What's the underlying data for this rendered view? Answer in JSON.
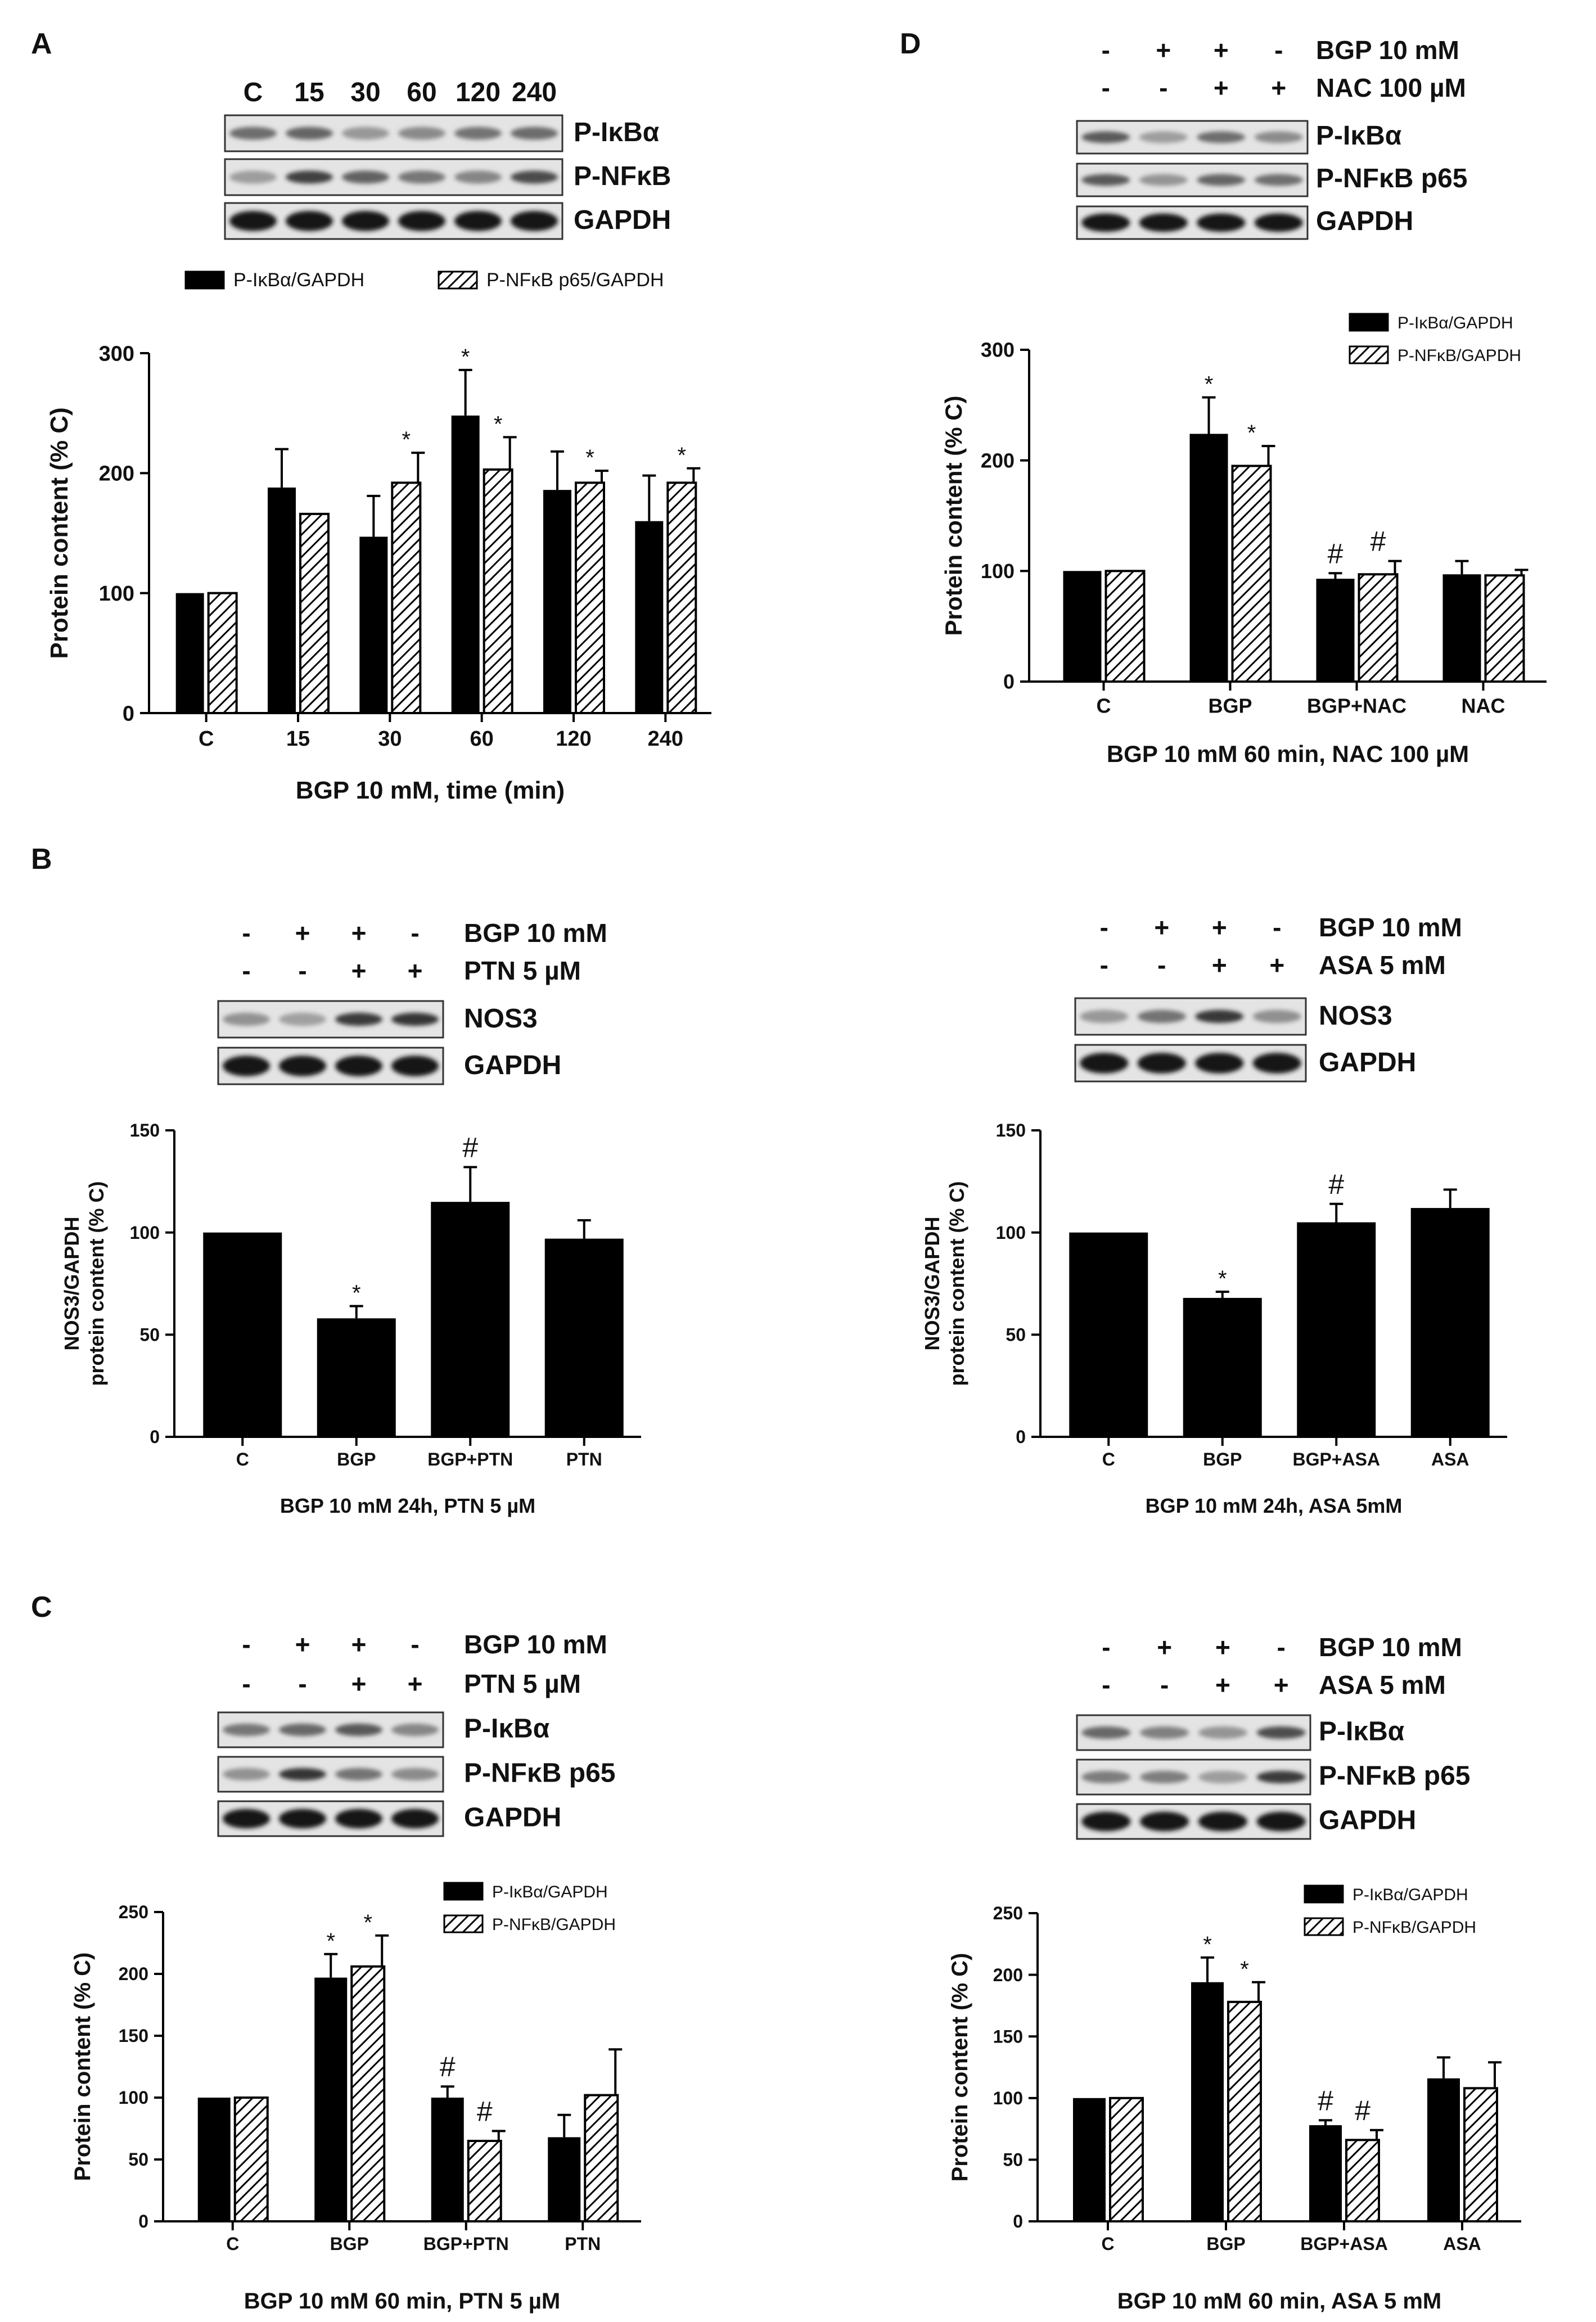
{
  "figure": {
    "panel_letters": [
      "A",
      "B",
      "C",
      "D"
    ]
  },
  "colors": {
    "bar_solid": "#000000",
    "hatch": "#000000",
    "background": "#ffffff",
    "blot_bg": "#d9d9d9"
  },
  "chart_data": [
    {
      "id": "A",
      "type": "bar",
      "title": "",
      "xlabel": "BGP 10 mM, time (min)",
      "ylabel": "Protein content  (% C)",
      "ylim": [
        0,
        300
      ],
      "yticks": [
        0,
        100,
        200,
        300
      ],
      "categories": [
        "C",
        "15",
        "30",
        "60",
        "120",
        "240"
      ],
      "series": [
        {
          "name": "P-IκBα/GAPDH",
          "style": "solid",
          "values": [
            100,
            188,
            147,
            248,
            186,
            160
          ],
          "errors": [
            0,
            32,
            34,
            38,
            32,
            38
          ],
          "marks": [
            "",
            "",
            "",
            "*",
            "",
            ""
          ]
        },
        {
          "name": "P-NFκB p65/GAPDH",
          "style": "hatched",
          "values": [
            100,
            166,
            192,
            203,
            192,
            192
          ],
          "errors": [
            0,
            0,
            25,
            27,
            10,
            12
          ],
          "marks": [
            "",
            "",
            "*",
            "*",
            "*",
            "*"
          ]
        }
      ],
      "legend": "top",
      "blot": {
        "lanes": [
          "C",
          "15",
          "30",
          "60",
          "120",
          "240"
        ],
        "conditions": [],
        "rows": [
          "P-IκBα",
          "P-NFκB",
          "GAPDH"
        ]
      }
    },
    {
      "id": "D",
      "type": "bar",
      "title": "",
      "xlabel": "BGP 10 mM 60 min, NAC 100 µM",
      "ylabel": "Protein content  (% C)",
      "ylim": [
        0,
        300
      ],
      "yticks": [
        0,
        100,
        200,
        300
      ],
      "categories": [
        "C",
        "BGP",
        "BGP+NAC",
        "NAC"
      ],
      "series": [
        {
          "name": "P-IκBα/GAPDH",
          "style": "solid",
          "values": [
            100,
            224,
            93,
            97
          ],
          "errors": [
            0,
            33,
            5,
            12
          ],
          "marks": [
            "",
            "*",
            "#",
            ""
          ]
        },
        {
          "name": "P-NFκB/GAPDH",
          "style": "hatched",
          "values": [
            100,
            195,
            97,
            96
          ],
          "errors": [
            0,
            18,
            12,
            5
          ],
          "marks": [
            "",
            "*",
            "#",
            ""
          ]
        }
      ],
      "legend": "top-right",
      "blot": {
        "lanes": [],
        "conditions": [
          {
            "label": "BGP 10 mM",
            "signs": [
              "-",
              "+",
              "+",
              "-"
            ]
          },
          {
            "label": "NAC 100 µM",
            "signs": [
              "-",
              "-",
              "+",
              "+"
            ]
          }
        ],
        "rows": [
          "P-IκBα",
          "P-NFκB p65",
          "GAPDH"
        ]
      }
    },
    {
      "id": "B-left",
      "type": "bar",
      "title": "",
      "xlabel": "BGP 10 mM 24h, PTN 5 µM",
      "ylabel": "NOS3/GAPDH",
      "ylabel2": "protein content (% C)",
      "ylim": [
        0,
        150
      ],
      "yticks": [
        0,
        50,
        100,
        150
      ],
      "categories": [
        "C",
        "BGP",
        "BGP+PTN",
        "PTN"
      ],
      "series": [
        {
          "name": "NOS3/GAPDH",
          "style": "solid",
          "values": [
            100,
            58,
            115,
            97
          ],
          "errors": [
            0,
            6,
            17,
            9
          ],
          "marks": [
            "",
            "*",
            "#",
            ""
          ]
        }
      ],
      "legend": "none",
      "blot": {
        "lanes": [],
        "conditions": [
          {
            "label": "BGP 10 mM",
            "signs": [
              "-",
              "+",
              "+",
              "-"
            ]
          },
          {
            "label": "PTN 5 µM",
            "signs": [
              "-",
              "-",
              "+",
              "+"
            ]
          }
        ],
        "rows": [
          "NOS3",
          "GAPDH"
        ]
      }
    },
    {
      "id": "B-right",
      "type": "bar",
      "title": "",
      "xlabel": "BGP 10 mM 24h, ASA 5mM",
      "ylabel": "NOS3/GAPDH",
      "ylabel2": "protein content (% C)",
      "ylim": [
        0,
        150
      ],
      "yticks": [
        0,
        50,
        100,
        150
      ],
      "categories": [
        "C",
        "BGP",
        "BGP+ASA",
        "ASA"
      ],
      "series": [
        {
          "name": "NOS3/GAPDH",
          "style": "solid",
          "values": [
            100,
            68,
            105,
            112
          ],
          "errors": [
            0,
            3,
            9,
            9
          ],
          "marks": [
            "",
            "*",
            "#",
            ""
          ]
        }
      ],
      "legend": "none",
      "blot": {
        "lanes": [],
        "conditions": [
          {
            "label": "BGP 10 mM",
            "signs": [
              "-",
              "+",
              "+",
              "-"
            ]
          },
          {
            "label": "ASA 5 mM",
            "signs": [
              "-",
              "-",
              "+",
              "+"
            ]
          }
        ],
        "rows": [
          "NOS3",
          "GAPDH"
        ]
      }
    },
    {
      "id": "C-left",
      "type": "bar",
      "title": "",
      "xlabel": "BGP 10 mM 60 min, PTN 5 µM",
      "ylabel": "Protein content  (% C)",
      "ylim": [
        0,
        250
      ],
      "yticks": [
        0,
        50,
        100,
        150,
        200,
        250
      ],
      "categories": [
        "C",
        "BGP",
        "BGP+PTN",
        "PTN"
      ],
      "series": [
        {
          "name": "P-IκBα/GAPDH",
          "style": "solid",
          "values": [
            100,
            197,
            100,
            68
          ],
          "errors": [
            0,
            19,
            9,
            18
          ],
          "marks": [
            "",
            "*",
            "#",
            ""
          ]
        },
        {
          "name": "P-NFκB/GAPDH",
          "style": "hatched",
          "values": [
            100,
            206,
            65,
            102
          ],
          "errors": [
            0,
            25,
            8,
            37
          ],
          "marks": [
            "",
            "*",
            "#",
            ""
          ]
        }
      ],
      "legend": "top-right",
      "blot": {
        "lanes": [],
        "conditions": [
          {
            "label": "BGP 10 mM",
            "signs": [
              "-",
              "+",
              "+",
              "-"
            ]
          },
          {
            "label": "PTN 5 µM",
            "signs": [
              "-",
              "-",
              "+",
              "+"
            ]
          }
        ],
        "rows": [
          "P-IκBα",
          "P-NFκB p65",
          "GAPDH"
        ]
      }
    },
    {
      "id": "C-right",
      "type": "bar",
      "title": "",
      "xlabel": "BGP 10 mM 60 min, ASA 5 mM",
      "ylabel": "Protein content  (% C)",
      "ylim": [
        0,
        250
      ],
      "yticks": [
        0,
        50,
        100,
        150,
        200,
        250
      ],
      "categories": [
        "C",
        "BGP",
        "BGP+ASA",
        "ASA"
      ],
      "series": [
        {
          "name": "P-IκBα/GAPDH",
          "style": "solid",
          "values": [
            100,
            194,
            78,
            116
          ],
          "errors": [
            0,
            20,
            4,
            17
          ],
          "marks": [
            "",
            "*",
            "#",
            ""
          ]
        },
        {
          "name": "P-NFκB/GAPDH",
          "style": "hatched",
          "values": [
            100,
            178,
            66,
            108
          ],
          "errors": [
            0,
            16,
            8,
            21
          ],
          "marks": [
            "",
            "*",
            "#",
            ""
          ]
        }
      ],
      "legend": "top-right",
      "blot": {
        "lanes": [],
        "conditions": [
          {
            "label": "BGP 10 mM",
            "signs": [
              "-",
              "+",
              "+",
              "-"
            ]
          },
          {
            "label": "ASA 5 mM",
            "signs": [
              "-",
              "-",
              "+",
              "+"
            ]
          }
        ],
        "rows": [
          "P-IκBα",
          "P-NFκB p65",
          "GAPDH"
        ]
      }
    }
  ]
}
